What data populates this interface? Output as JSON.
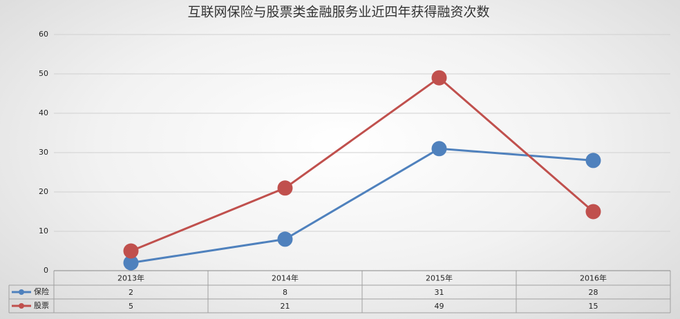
{
  "chart_data": {
    "type": "line",
    "title": "互联网保险与股票类金融服务业近四年获得融资次数",
    "categories": [
      "2013年",
      "2014年",
      "2015年",
      "2016年"
    ],
    "series": [
      {
        "name": "保险",
        "color": "#4f81bd",
        "values": [
          2,
          8,
          31,
          28
        ]
      },
      {
        "name": "股票",
        "color": "#c0504d",
        "values": [
          5,
          21,
          49,
          15
        ]
      }
    ],
    "ylim": [
      0,
      60
    ],
    "yticks": [
      0,
      10,
      20,
      30,
      40,
      50,
      60
    ],
    "grid": true,
    "data_table": true
  }
}
